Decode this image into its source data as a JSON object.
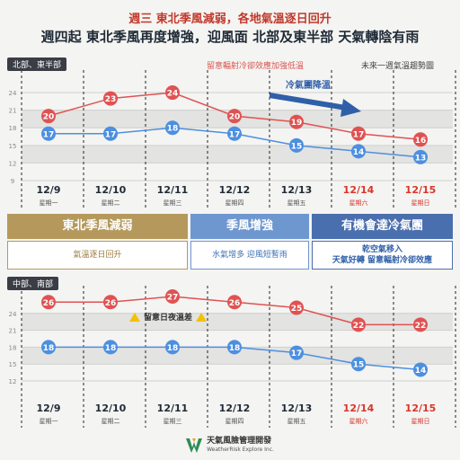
{
  "headline": "週三 東北季風減弱，各地氣溫逐日回升",
  "subhead": "週四起 東北季風再度增強，迎風面 北部及東半部 天氣轉陰有雨",
  "top_chart": {
    "region_label": "北部、東半部",
    "note": "留意輻射冷卻效應加強低溫",
    "trend_label": "未來一週氣溫趨勢圖",
    "arrow_label": "冷氣團降溫"
  },
  "bottom_chart": {
    "region_label": "中部、南部",
    "warning": "留意日夜溫差"
  },
  "phases": [
    {
      "title": "東北季風減弱",
      "note_lines": [
        "氣溫逐日回升"
      ],
      "color": "#b5995c"
    },
    {
      "title": "季風增強",
      "note_lines": [
        "水氣增多 迎風短暫雨"
      ],
      "color": "#6e97cf"
    },
    {
      "title": "有機會達冷氣團",
      "note_lines": [
        "乾空氣移入",
        "天氣好轉 留意輻射冷卻效應"
      ],
      "color": "#4a6fae"
    }
  ],
  "footer": {
    "org": "天氣風險管理開發",
    "org_en": "WeatherRisk Explore Inc."
  },
  "colors": {
    "high": "#e05252",
    "low": "#4d8fe0",
    "weekend": "#d9362b"
  },
  "chart_data": [
    {
      "type": "line",
      "x": [
        "12/9",
        "12/10",
        "12/11",
        "12/12",
        "12/13",
        "12/14",
        "12/15"
      ],
      "weekday": [
        "星期一",
        "星期二",
        "星期三",
        "星期四",
        "星期五",
        "星期六",
        "星期日"
      ],
      "weekend": [
        false,
        false,
        false,
        false,
        false,
        true,
        true
      ],
      "yticks": [
        9,
        12,
        15,
        18,
        21,
        24
      ],
      "ylim": [
        9,
        26
      ],
      "series": [
        {
          "values": [
            20,
            23,
            24,
            20,
            19,
            17,
            16
          ]
        },
        {
          "values": [
            17,
            17,
            18,
            17,
            15,
            14,
            13
          ]
        }
      ]
    },
    {
      "type": "line",
      "x": [
        "12/9",
        "12/10",
        "12/11",
        "12/12",
        "12/13",
        "12/14",
        "12/15"
      ],
      "weekday": [
        "星期一",
        "星期二",
        "星期三",
        "星期四",
        "星期五",
        "星期六",
        "星期日"
      ],
      "weekend": [
        false,
        false,
        false,
        false,
        false,
        true,
        true
      ],
      "yticks": [
        12,
        15,
        18,
        21,
        24
      ],
      "ylim": [
        12,
        27
      ],
      "series": [
        {
          "values": [
            26,
            26,
            27,
            26,
            25,
            22,
            22
          ]
        },
        {
          "values": [
            18,
            18,
            18,
            18,
            17,
            15,
            14
          ]
        }
      ]
    }
  ]
}
